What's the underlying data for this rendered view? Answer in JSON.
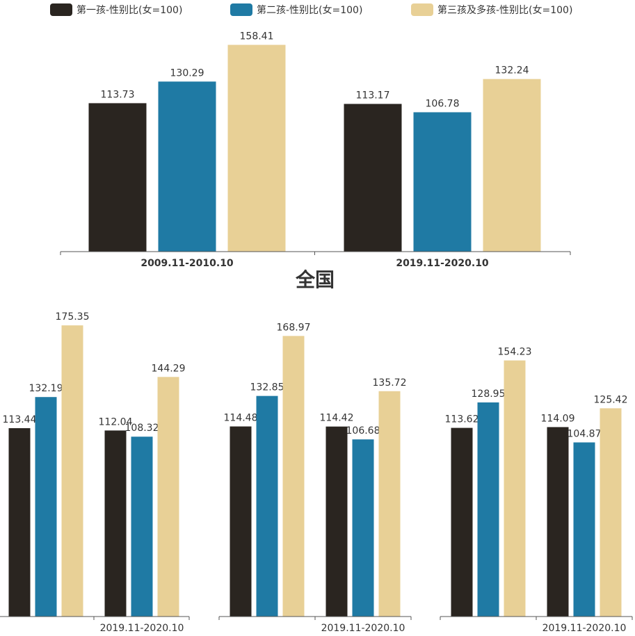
{
  "colors": {
    "first": "#2a2520",
    "second": "#1f7aa4",
    "third": "#e8d096",
    "axis": "#555555"
  },
  "legend": {
    "items": [
      {
        "label": "第一孩-性别比(女=100)",
        "color": "#2a2520"
      },
      {
        "label": "第二孩-性别比(女=100)",
        "color": "#1f7aa4"
      },
      {
        "label": "第三孩及多孩-性别比(女=100)",
        "color": "#e8d096"
      }
    ],
    "position": "top"
  },
  "chart_data": [
    {
      "type": "bar",
      "title": "全国",
      "categories": [
        "2009.11-2010.10",
        "2019.11-2020.10"
      ],
      "series": [
        {
          "name": "第一孩-性别比(女=100)",
          "values": [
            113.73,
            113.17
          ]
        },
        {
          "name": "第二孩-性别比(女=100)",
          "values": [
            130.29,
            106.78
          ]
        },
        {
          "name": "第三孩及多孩-性别比(女=100)",
          "values": [
            158.41,
            132.24
          ]
        }
      ],
      "ylim": [
        0,
        180
      ]
    },
    {
      "type": "bar",
      "title": "",
      "categories": [
        "",
        "2019.11-2020.10"
      ],
      "series": [
        {
          "name": "第一孩-性别比(女=100)",
          "values": [
            113.44,
            112.04
          ]
        },
        {
          "name": "第二孩-性别比(女=100)",
          "values": [
            132.19,
            108.32
          ]
        },
        {
          "name": "第三孩及多孩-性别比(女=100)",
          "values": [
            175.35,
            144.29
          ]
        }
      ],
      "ylim": [
        0,
        180
      ]
    },
    {
      "type": "bar",
      "title": "",
      "categories": [
        "",
        "2019.11-2020.10"
      ],
      "series": [
        {
          "name": "第一孩-性别比(女=100)",
          "values": [
            114.48,
            114.42
          ]
        },
        {
          "name": "第二孩-性别比(女=100)",
          "values": [
            132.85,
            106.68
          ]
        },
        {
          "name": "第三孩及多孩-性别比(女=100)",
          "values": [
            168.97,
            135.72
          ]
        }
      ],
      "ylim": [
        0,
        180
      ]
    },
    {
      "type": "bar",
      "title": "",
      "categories": [
        "",
        "2019.11-2020.10"
      ],
      "series": [
        {
          "name": "第一孩-性别比(女=100)",
          "values": [
            113.62,
            114.09
          ]
        },
        {
          "name": "第二孩-性别比(女=100)",
          "values": [
            128.95,
            104.87
          ]
        },
        {
          "name": "第三孩及多孩-性别比(女=100)",
          "values": [
            154.23,
            125.42
          ]
        }
      ],
      "ylim": [
        0,
        180
      ]
    }
  ]
}
